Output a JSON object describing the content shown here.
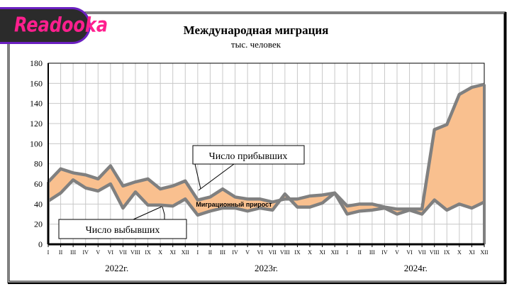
{
  "logo": {
    "text": "Readooka"
  },
  "chart_data": {
    "type": "area",
    "title": "Международная миграция",
    "subtitle": "тыс. человек",
    "ylim": [
      0,
      180
    ],
    "yticks": [
      0,
      20,
      40,
      60,
      80,
      100,
      120,
      140,
      160,
      180
    ],
    "grid": true,
    "categories": [
      "I",
      "II",
      "III",
      "IV",
      "V",
      "VI",
      "VII",
      "VIII",
      "IX",
      "X",
      "XI",
      "XII",
      "I",
      "II",
      "III",
      "IV",
      "V",
      "VI",
      "VII",
      "VIII",
      "IX",
      "X",
      "XI",
      "XII",
      "I",
      "II",
      "III",
      "IV",
      "V",
      "VI",
      "VII",
      "VIII",
      "IX",
      "X",
      "XI",
      "XII"
    ],
    "years": [
      "2022г.",
      "2023г.",
      "2024г."
    ],
    "series": [
      {
        "name": "Число прибывших",
        "values": [
          62,
          75,
          71,
          69,
          65,
          78,
          58,
          62,
          65,
          55,
          58,
          63,
          44,
          47,
          55,
          47,
          45,
          45,
          42,
          45,
          45,
          48,
          49,
          51,
          38,
          40,
          40,
          37,
          35,
          35,
          35,
          114,
          119,
          149,
          156,
          159
        ]
      },
      {
        "name": "Число выбывших",
        "values": [
          43,
          51,
          64,
          56,
          53,
          60,
          36,
          52,
          39,
          39,
          38,
          45,
          29,
          33,
          36,
          36,
          33,
          36,
          34,
          50,
          37,
          37,
          41,
          51,
          30,
          33,
          34,
          36,
          30,
          34,
          30,
          44,
          34,
          40,
          36,
          42
        ]
      }
    ],
    "fill_label": "Миграционный прирост",
    "colors": {
      "fill": "#F9C08F",
      "line": "#808080",
      "grid": "#C8C8C8"
    }
  }
}
